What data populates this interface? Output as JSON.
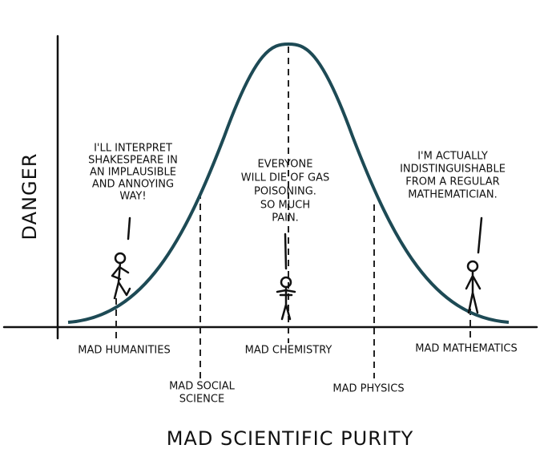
{
  "axes": {
    "y_label": "DANGER",
    "x_label": "MAD SCIENTIFIC PURITY"
  },
  "categories": [
    {
      "lines": [
        "MAD HUMANITIES"
      ]
    },
    {
      "lines": [
        "MAD SOCIAL",
        "SCIENCE"
      ]
    },
    {
      "lines": [
        "MAD CHEMISTRY"
      ]
    },
    {
      "lines": [
        "MAD PHYSICS"
      ]
    },
    {
      "lines": [
        "MAD MATHEMATICS"
      ]
    }
  ],
  "bubbles": [
    {
      "lines": [
        "I'LL INTERPRET",
        "SHAKESPEARE IN",
        "AN IMPLAUSIBLE",
        "AND ANNOYING",
        "WAY!"
      ]
    },
    {
      "lines": [
        "EVERYONE",
        "WILL DIE OF GAS",
        "POISONING.",
        "SO MUCH",
        "PAIN."
      ]
    },
    {
      "lines": [
        "I'M ACTUALLY",
        "INDISTINGUISHABLE",
        "FROM A REGULAR",
        "MATHEMATICIAN."
      ]
    }
  ]
}
